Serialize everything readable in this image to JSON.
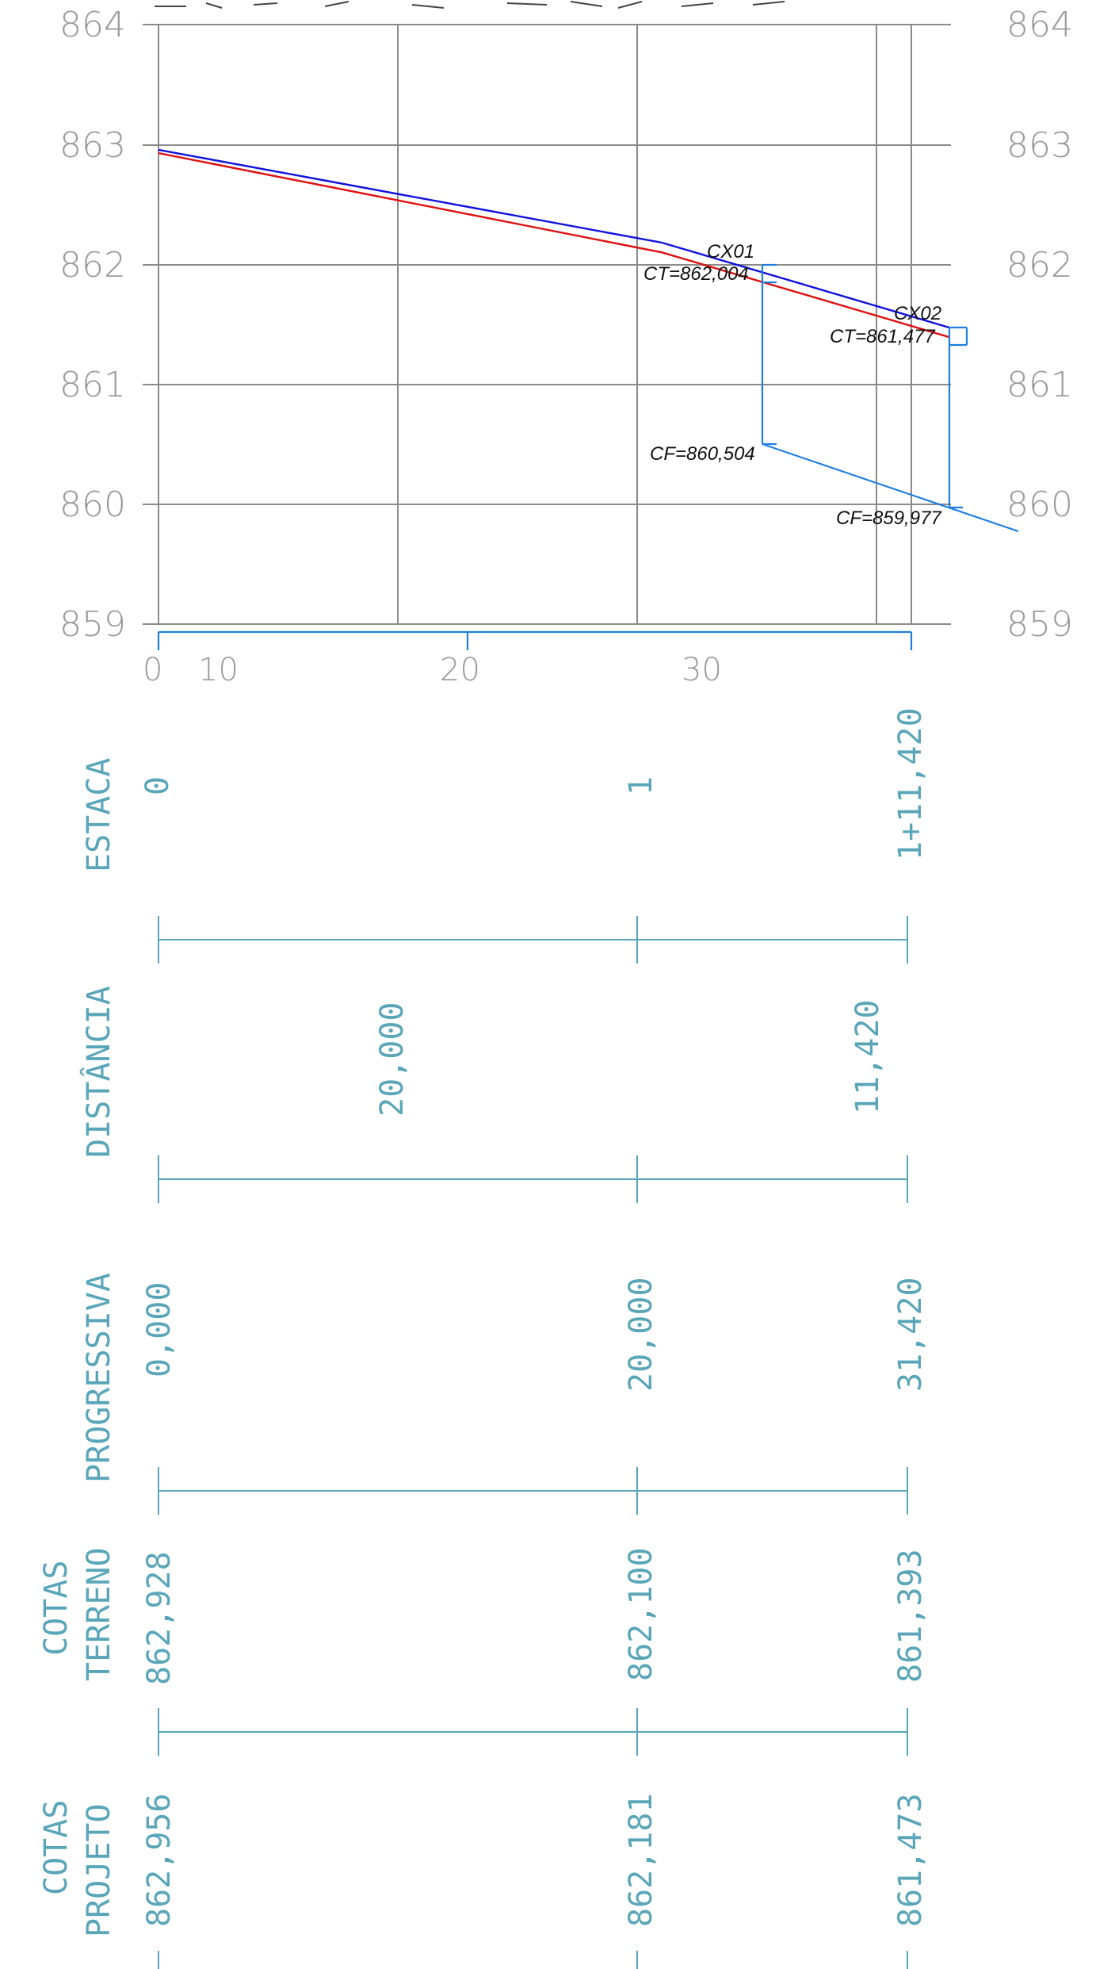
{
  "chart_data": {
    "type": "line",
    "y_ticks": [
      "864",
      "863",
      "862",
      "861",
      "860",
      "859"
    ],
    "ylim": [
      859,
      864
    ],
    "x_ticks": [
      "0",
      "10",
      "20",
      "30"
    ],
    "series": [
      {
        "color": "#1010e0",
        "x": [
          0,
          20,
          31.42
        ],
        "y": [
          862.956,
          862.181,
          861.473
        ]
      },
      {
        "color": "#e01010",
        "x": [
          0,
          20,
          31.42
        ],
        "y": [
          862.928,
          862.1,
          861.393
        ]
      }
    ],
    "annotations": {
      "cx01": {
        "name": "CX01",
        "ct": "CT=862,004",
        "cf": "CF=860,504"
      },
      "cx02": {
        "name": "CX02",
        "ct": "CT=861,477",
        "cf": "CF=859,977"
      }
    }
  },
  "table": {
    "estaca": {
      "label": "ESTACA",
      "values": [
        "0",
        "1",
        "1+11,420"
      ]
    },
    "distancia": {
      "label": "DISTÂNCIA",
      "values": [
        "20,000",
        "11,420"
      ]
    },
    "progressiva": {
      "label": "PROGRESSIVA",
      "values": [
        "0,000",
        "20,000",
        "31,420"
      ]
    },
    "cotas_terreno": {
      "label_line1": "COTAS",
      "label_line2": "TERRENO",
      "values": [
        "862,928",
        "862,100",
        "861,393"
      ]
    },
    "cotas_projeto": {
      "label_line1": "COTAS",
      "label_line2": "PROJETO",
      "values": [
        "862,956",
        "862,181",
        "861,473"
      ]
    }
  },
  "colors": {
    "grid": "#8a8a8a",
    "table": "#5aa6b8",
    "pipe": "#1e7fe0",
    "terrain": "#e01010",
    "project": "#1010e0"
  }
}
